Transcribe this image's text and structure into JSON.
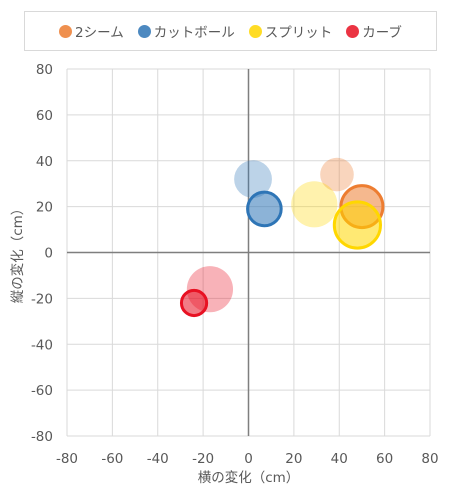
{
  "chart_data": {
    "type": "bubble",
    "title": "",
    "xlabel": "横の変化（cm）",
    "ylabel": "縦の変化（cm）",
    "xlim": [
      -80,
      80
    ],
    "ylim": [
      -80,
      80
    ],
    "xticks": [
      "-80",
      "-60",
      "-40",
      "-20",
      "0",
      "20",
      "40",
      "60",
      "80"
    ],
    "yticks": [
      "80",
      "60",
      "40",
      "20",
      "0",
      "-20",
      "-40",
      "-60",
      "-80"
    ],
    "grid": true,
    "legend_position": "top",
    "series": [
      {
        "name": "2シーム",
        "color": "#ed7d31",
        "points": [
          {
            "x": 39,
            "y": 34,
            "size": 8,
            "faded": true
          },
          {
            "x": 50,
            "y": 20,
            "size": 10,
            "faded": false
          }
        ]
      },
      {
        "name": "カットボール",
        "color": "#2e75b6",
        "points": [
          {
            "x": 2,
            "y": 32,
            "size": 9,
            "faded": true
          },
          {
            "x": 7,
            "y": 19,
            "size": 8,
            "faded": false
          }
        ]
      },
      {
        "name": "スプリット",
        "color": "#ffd700",
        "points": [
          {
            "x": 29,
            "y": 21,
            "size": 11,
            "faded": true
          },
          {
            "x": 48,
            "y": 12,
            "size": 11,
            "faded": false
          }
        ]
      },
      {
        "name": "カーブ",
        "color": "#e81123",
        "points": [
          {
            "x": -17,
            "y": -16,
            "size": 11,
            "faded": true
          },
          {
            "x": -24,
            "y": -22,
            "size": 6,
            "faded": false
          }
        ]
      }
    ]
  }
}
